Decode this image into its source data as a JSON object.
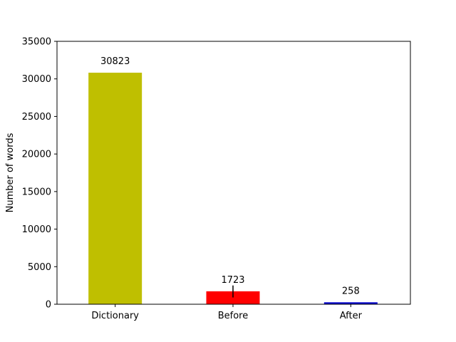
{
  "chart_data": {
    "type": "bar",
    "title": "",
    "xlabel": "",
    "ylabel": "Number of words",
    "categories": [
      "Dictionary",
      "Before",
      "After"
    ],
    "values": [
      30823,
      1723,
      258
    ],
    "data_labels": [
      "30823",
      "1723",
      "258"
    ],
    "colors": [
      "#bfbf00",
      "#ff0000",
      "#0000cc"
    ],
    "error_bars": [
      null,
      [
        900,
        2500
      ],
      null
    ],
    "ylim": [
      0,
      35000
    ],
    "yticks": [
      0,
      5000,
      10000,
      15000,
      20000,
      25000,
      30000,
      35000
    ],
    "grid": false,
    "legend": "none"
  }
}
